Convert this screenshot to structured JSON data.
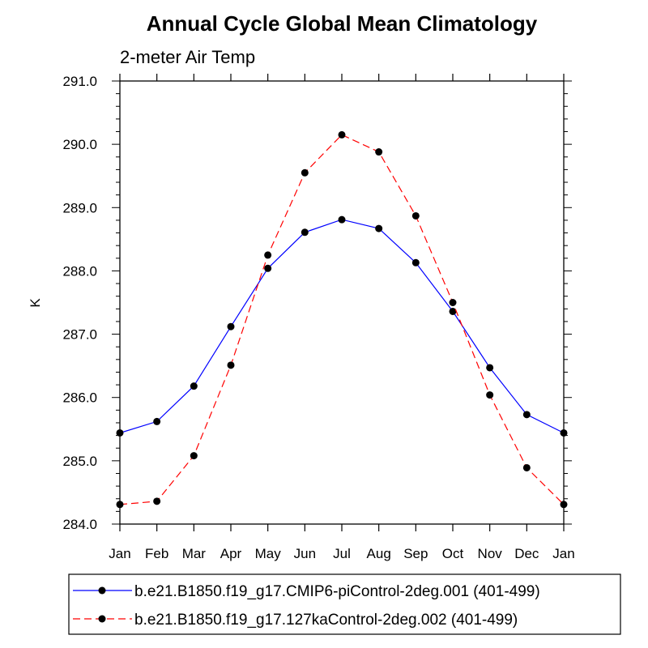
{
  "chart_data": {
    "type": "line",
    "title": "Annual Cycle Global Mean Climatology",
    "subtitle": "2-meter Air Temp",
    "xlabel": "",
    "ylabel": "K",
    "categories": [
      "Jan",
      "Feb",
      "Mar",
      "Apr",
      "May",
      "Jun",
      "Jul",
      "Aug",
      "Sep",
      "Oct",
      "Nov",
      "Dec",
      "Jan"
    ],
    "ylim": [
      284.0,
      291.0
    ],
    "yticks": [
      "284.0",
      "285.0",
      "286.0",
      "287.0",
      "288.0",
      "289.0",
      "290.0",
      "291.0"
    ],
    "grid": false,
    "legend_position": "bottom",
    "series": [
      {
        "name": "b.e21.B1850.f19_g17.CMIP6-piControl-2deg.001 (401-499)",
        "color": "#0000ff",
        "line_style": "solid",
        "marker": "filled-circle",
        "values": [
          285.44,
          285.62,
          286.18,
          287.12,
          288.04,
          288.61,
          288.81,
          288.67,
          288.13,
          287.36,
          286.47,
          285.73,
          285.44
        ]
      },
      {
        "name": "b.e21.B1850.f19_g17.127kaControl-2deg.002 (401-499)",
        "color": "#ff0000",
        "line_style": "dashed",
        "marker": "filled-circle",
        "values": [
          284.31,
          284.36,
          285.08,
          286.51,
          288.25,
          289.55,
          290.15,
          289.88,
          288.87,
          287.5,
          286.04,
          284.89,
          284.31
        ]
      }
    ]
  }
}
